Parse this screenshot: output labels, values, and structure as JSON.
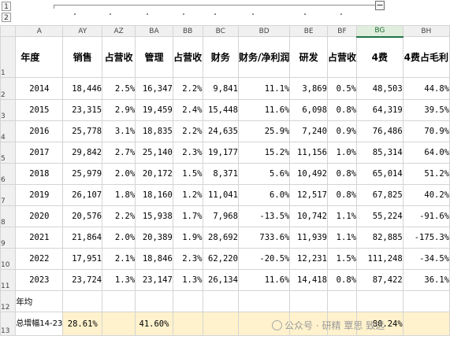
{
  "outline": {
    "level_buttons": [
      "1",
      "2"
    ],
    "collapse_symbol": "−"
  },
  "columns": [
    "A",
    "AY",
    "AZ",
    "BA",
    "BB",
    "BC",
    "BD",
    "BE",
    "BF",
    "BG",
    "BH"
  ],
  "rows": [
    "1",
    "2",
    "3",
    "4",
    "5",
    "6",
    "7",
    "8",
    "9",
    "10",
    "11",
    "12",
    "13"
  ],
  "headers": [
    "年度",
    "销售",
    "占营收",
    "管理",
    "占营收",
    "财务",
    "财务/净利润",
    "研发",
    "占营收",
    "4费",
    "4费占毛利"
  ],
  "data": [
    [
      "2014",
      "18,446",
      "2.5%",
      "16,347",
      "2.2%",
      "9,841",
      "11.1%",
      "3,869",
      "0.5%",
      "48,503",
      "44.8%"
    ],
    [
      "2015",
      "23,315",
      "2.9%",
      "19,459",
      "2.4%",
      "15,448",
      "11.6%",
      "6,098",
      "0.8%",
      "64,319",
      "39.5%"
    ],
    [
      "2016",
      "25,778",
      "3.1%",
      "18,835",
      "2.2%",
      "24,635",
      "25.9%",
      "7,240",
      "0.9%",
      "76,486",
      "70.9%"
    ],
    [
      "2017",
      "29,842",
      "2.7%",
      "25,140",
      "2.3%",
      "19,177",
      "15.2%",
      "11,156",
      "1.0%",
      "85,314",
      "64.0%"
    ],
    [
      "2018",
      "25,979",
      "2.0%",
      "20,172",
      "1.5%",
      "8,371",
      "5.6%",
      "10,492",
      "0.8%",
      "65,014",
      "51.2%"
    ],
    [
      "2019",
      "26,107",
      "1.8%",
      "18,160",
      "1.2%",
      "11,041",
      "6.0%",
      "12,517",
      "0.8%",
      "67,825",
      "40.2%"
    ],
    [
      "2020",
      "20,576",
      "2.2%",
      "15,938",
      "1.7%",
      "7,968",
      "-13.5%",
      "10,742",
      "1.1%",
      "55,224",
      "-91.6%"
    ],
    [
      "2021",
      "21,864",
      "2.0%",
      "20,389",
      "1.9%",
      "28,692",
      "733.6%",
      "11,939",
      "1.1%",
      "82,885",
      "-175.3%"
    ],
    [
      "2022",
      "17,951",
      "2.1%",
      "18,846",
      "2.3%",
      "62,220",
      "-20.5%",
      "12,231",
      "1.5%",
      "111,248",
      "-34.5%"
    ],
    [
      "2023",
      "23,724",
      "1.3%",
      "23,147",
      "1.3%",
      "26,134",
      "11.6%",
      "14,418",
      "0.8%",
      "87,422",
      "36.1%"
    ]
  ],
  "avg_label": "年均",
  "growth": {
    "label": "总增幅14-23",
    "sales": "28.61%",
    "mgmt": "41.60%",
    "fourfee": "80.24%"
  },
  "watermark": "公众号 · 研精 覃思 致远",
  "selected_column": "BG"
}
